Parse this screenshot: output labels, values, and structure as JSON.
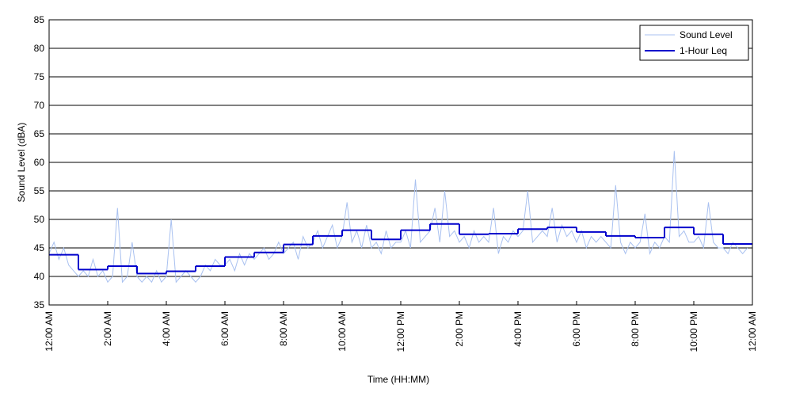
{
  "chart_data": {
    "type": "line",
    "x_label": "Time (HH:MM)",
    "y_label": "Sound Level (dBA)",
    "xlim": [
      0,
      1440
    ],
    "ylim": [
      35,
      85
    ],
    "yticks": [
      35,
      40,
      45,
      50,
      55,
      60,
      65,
      70,
      75,
      80,
      85
    ],
    "xticks": [
      {
        "value": 0,
        "label": "12:00 AM"
      },
      {
        "value": 120,
        "label": "2:00 AM"
      },
      {
        "value": 240,
        "label": "4:00 AM"
      },
      {
        "value": 360,
        "label": "6:00 AM"
      },
      {
        "value": 480,
        "label": "8:00 AM"
      },
      {
        "value": 600,
        "label": "10:00 AM"
      },
      {
        "value": 720,
        "label": "12:00 PM"
      },
      {
        "value": 840,
        "label": "2:00 PM"
      },
      {
        "value": 960,
        "label": "4:00 PM"
      },
      {
        "value": 1080,
        "label": "6:00 PM"
      },
      {
        "value": 1200,
        "label": "8:00 PM"
      },
      {
        "value": 1320,
        "label": "10:00 PM"
      },
      {
        "value": 1440,
        "label": "12:00 AM"
      }
    ],
    "grid": true,
    "legend": "upper right",
    "series": [
      {
        "name": "Sound Level",
        "color": "#a9c1f0",
        "style": "line",
        "x": [
          0,
          10,
          20,
          30,
          40,
          50,
          60,
          70,
          80,
          90,
          100,
          110,
          120,
          130,
          140,
          150,
          160,
          170,
          180,
          190,
          200,
          210,
          220,
          230,
          240,
          250,
          260,
          270,
          280,
          290,
          300,
          310,
          320,
          330,
          340,
          350,
          360,
          370,
          380,
          390,
          400,
          410,
          420,
          430,
          440,
          450,
          460,
          470,
          480,
          490,
          500,
          510,
          520,
          530,
          540,
          550,
          560,
          570,
          580,
          590,
          600,
          610,
          620,
          630,
          640,
          650,
          660,
          670,
          680,
          690,
          700,
          710,
          720,
          730,
          740,
          750,
          760,
          770,
          780,
          790,
          800,
          810,
          820,
          830,
          840,
          850,
          860,
          870,
          880,
          890,
          900,
          910,
          920,
          930,
          940,
          950,
          960,
          970,
          980,
          990,
          1000,
          1010,
          1020,
          1030,
          1040,
          1050,
          1060,
          1070,
          1080,
          1090,
          1100,
          1110,
          1120,
          1130,
          1140,
          1150,
          1160,
          1170,
          1180,
          1190,
          1200,
          1210,
          1220,
          1230,
          1240,
          1250,
          1260,
          1270,
          1280,
          1290,
          1300,
          1310,
          1320,
          1330,
          1340,
          1350,
          1360,
          1370,
          1380,
          1390,
          1400,
          1410,
          1420,
          1430
        ],
        "values": [
          44,
          46,
          43,
          45,
          42,
          41,
          40,
          41,
          40,
          43,
          40,
          41,
          39,
          40,
          52,
          39,
          40,
          46,
          40,
          39,
          40,
          39,
          41,
          39,
          40,
          50,
          39,
          40,
          41,
          40,
          39,
          40,
          42,
          41,
          43,
          42,
          42,
          43,
          41,
          44,
          42,
          44,
          43,
          44,
          45,
          43,
          44,
          46,
          44,
          45,
          46,
          43,
          47,
          45,
          46,
          48,
          45,
          47,
          49,
          45,
          47,
          53,
          46,
          48,
          45,
          49,
          45,
          46,
          44,
          48,
          45,
          46,
          46,
          48,
          45,
          57,
          46,
          47,
          48,
          52,
          46,
          55,
          47,
          48,
          46,
          47,
          45,
          48,
          46,
          47,
          46,
          52,
          44,
          47,
          46,
          48,
          47,
          48,
          55,
          46,
          47,
          48,
          47,
          52,
          46,
          49,
          47,
          48,
          46,
          48,
          45,
          47,
          46,
          47,
          46,
          45,
          56,
          46,
          44,
          46,
          45,
          46,
          51,
          44,
          46,
          45,
          47,
          46,
          62,
          47,
          48,
          46,
          46,
          47,
          45,
          53,
          46,
          45,
          45,
          44,
          46,
          45,
          44,
          45
        ]
      },
      {
        "name": "1-Hour Leq",
        "color": "#0000cc",
        "style": "step",
        "x": [
          0,
          60,
          120,
          180,
          240,
          300,
          360,
          420,
          480,
          540,
          600,
          660,
          720,
          780,
          840,
          900,
          960,
          1020,
          1080,
          1140,
          1200,
          1260,
          1320,
          1380
        ],
        "values": [
          43.8,
          41.2,
          41.8,
          40.5,
          40.9,
          41.8,
          43.4,
          44.2,
          45.6,
          47.1,
          48.1,
          46.5,
          48.1,
          49.2,
          47.4,
          47.5,
          48.3,
          48.6,
          47.8,
          47.1,
          46.8,
          48.6,
          47.4,
          45.7
        ]
      }
    ]
  }
}
